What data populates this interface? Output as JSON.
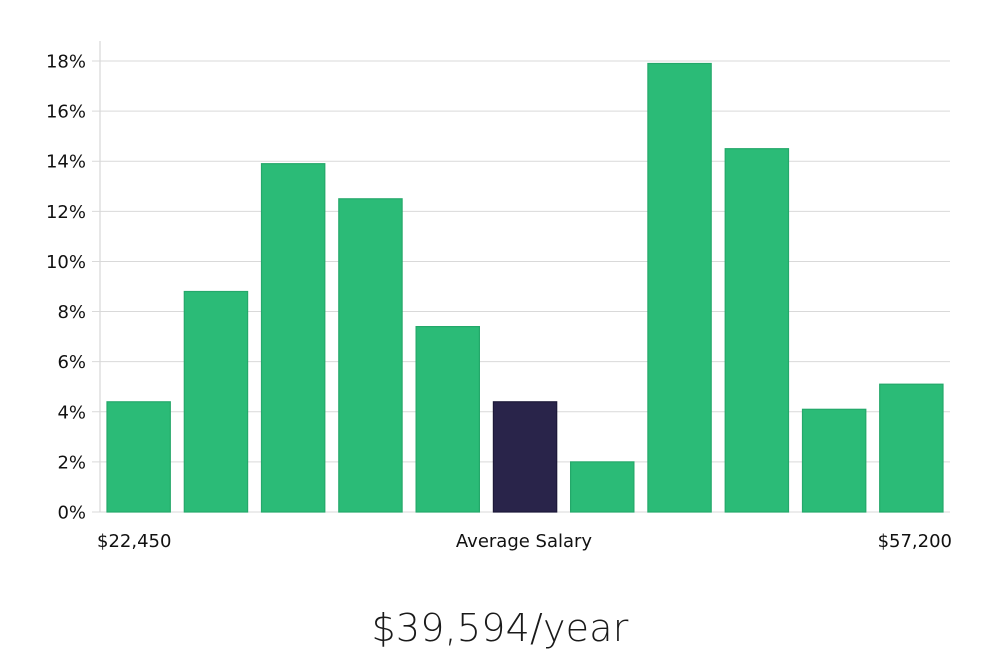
{
  "chart_data": {
    "type": "bar",
    "values": [
      4.4,
      8.8,
      13.9,
      12.5,
      7.4,
      4.4,
      2.0,
      17.9,
      14.5,
      4.1,
      5.1
    ],
    "highlight_index": 5,
    "ylim": [
      0,
      18
    ],
    "yticks": [
      0,
      2,
      4,
      6,
      8,
      10,
      12,
      14,
      16,
      18
    ],
    "ytick_suffix": "%",
    "x_labels": {
      "left": "$22,450",
      "center": "Average Salary",
      "right": "$57,200"
    },
    "colors": {
      "bar": "#2bbb77",
      "highlight": "#29244a",
      "grid": "#d9d9d9",
      "text": "#111111"
    },
    "grid": true
  },
  "summary": {
    "value_text": "$39,594/year"
  }
}
